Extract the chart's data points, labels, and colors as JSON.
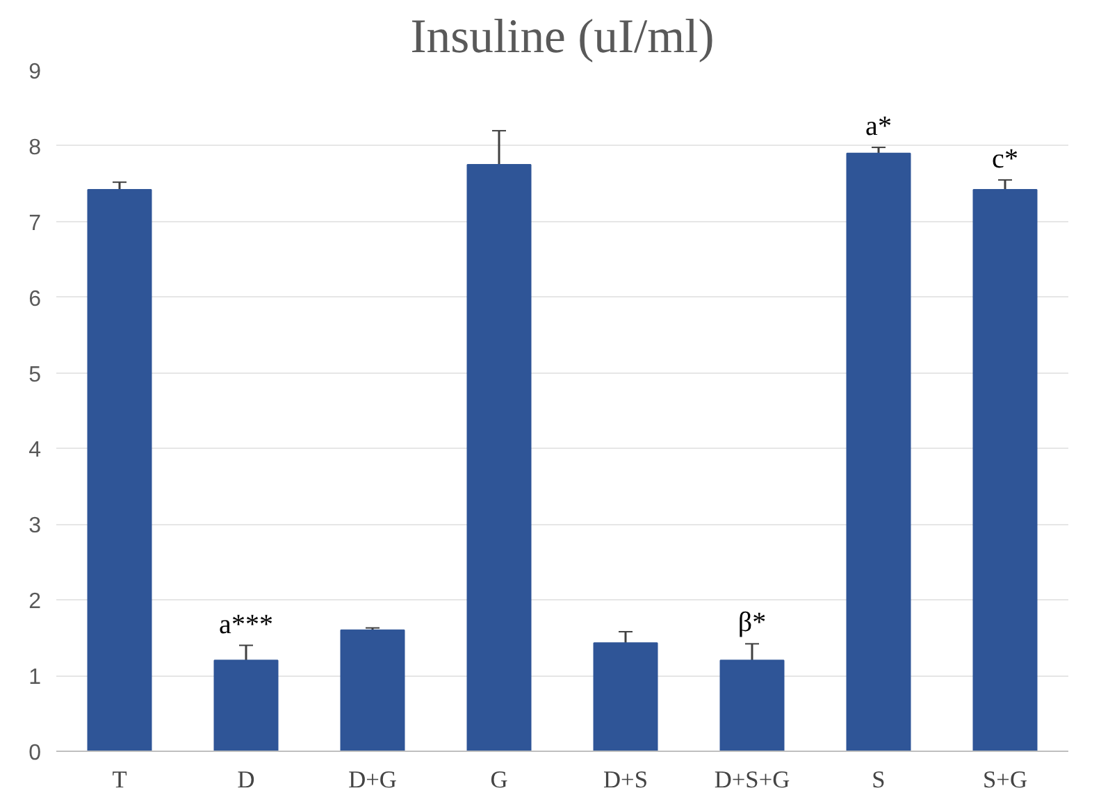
{
  "chart_data": {
    "type": "bar",
    "title": "Insuline (uI/ml)",
    "categories": [
      "T",
      "D",
      "D+G",
      "G",
      "D+S",
      "D+S+G",
      "S",
      "S+G"
    ],
    "values": [
      7.42,
      1.2,
      1.6,
      7.75,
      1.43,
      1.2,
      7.9,
      7.42
    ],
    "errors": [
      [
        7.42,
        7.52
      ],
      [
        1.2,
        1.4
      ],
      [
        1.6,
        1.63
      ],
      [
        7.75,
        8.2
      ],
      [
        1.43,
        1.58
      ],
      [
        1.2,
        1.42
      ],
      [
        7.9,
        7.98
      ],
      [
        7.42,
        7.55
      ]
    ],
    "color": "#2f5597",
    "ylim": [
      0,
      9
    ],
    "yticks": [
      0,
      1,
      2,
      3,
      4,
      5,
      6,
      7,
      8,
      9
    ],
    "grid": "y",
    "annotations": [
      {
        "text": "a***",
        "x": "D",
        "y": 1.4
      },
      {
        "text": "β*",
        "x": "D+S+G",
        "y": 1.42
      },
      {
        "text": "a*",
        "x": "S",
        "y": 7.98
      },
      {
        "text": "c*",
        "x": "S+G",
        "y": 7.55
      }
    ]
  }
}
